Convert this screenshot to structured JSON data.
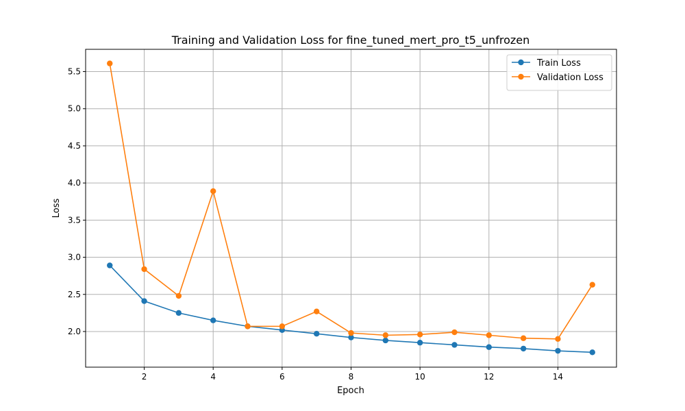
{
  "chart_data": {
    "type": "line",
    "title": "Training and Validation Loss for fine_tuned_mert_pro_t5_unfrozen",
    "xlabel": "Epoch",
    "ylabel": "Loss",
    "x": [
      1,
      2,
      3,
      4,
      5,
      6,
      7,
      8,
      9,
      10,
      11,
      12,
      13,
      14,
      15
    ],
    "xlim": [
      0.3,
      15.7
    ],
    "ylim": [
      1.52,
      5.8
    ],
    "xticks": [
      2,
      4,
      6,
      8,
      10,
      12,
      14
    ],
    "xtick_labels": [
      "2",
      "4",
      "6",
      "8",
      "10",
      "12",
      "14"
    ],
    "yticks": [
      2.0,
      2.5,
      3.0,
      3.5,
      4.0,
      4.5,
      5.0,
      5.5
    ],
    "ytick_labels": [
      "2.0",
      "2.5",
      "3.0",
      "3.5",
      "4.0",
      "4.5",
      "5.0",
      "5.5"
    ],
    "grid": true,
    "legend_position": "top-right",
    "series": [
      {
        "name": "Train Loss",
        "color": "#1f77b4",
        "marker": "circle",
        "values": [
          2.89,
          2.41,
          2.25,
          2.15,
          2.07,
          2.02,
          1.97,
          1.92,
          1.88,
          1.85,
          1.82,
          1.79,
          1.77,
          1.74,
          1.72
        ]
      },
      {
        "name": "Validation Loss",
        "color": "#ff7f0e",
        "marker": "circle",
        "values": [
          5.61,
          2.84,
          2.48,
          3.89,
          2.07,
          2.07,
          2.27,
          1.98,
          1.95,
          1.96,
          1.99,
          1.95,
          1.91,
          1.9,
          2.63
        ]
      }
    ]
  }
}
